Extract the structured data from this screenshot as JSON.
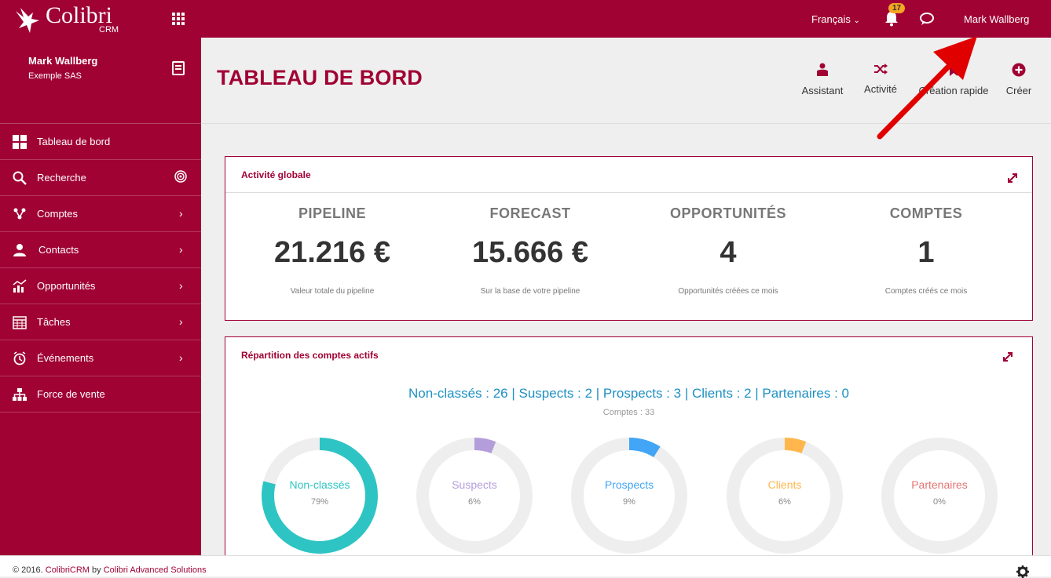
{
  "topbar": {
    "logo_name": "Colibri",
    "logo_sub": "CRM",
    "language": "Français",
    "notification_count": "17",
    "user_name": "Mark Wallberg"
  },
  "sidebar": {
    "profile": {
      "name": "Mark Wallberg",
      "company": "Exemple SAS"
    },
    "items": [
      {
        "label": "Tableau de bord",
        "icon": "dashboard-icon"
      },
      {
        "label": "Recherche",
        "icon": "search-icon"
      },
      {
        "label": "Comptes",
        "icon": "accounts-icon"
      },
      {
        "label": "Contacts",
        "icon": "contacts-icon"
      },
      {
        "label": "Opportunités",
        "icon": "opportunities-icon"
      },
      {
        "label": "Tâches",
        "icon": "tasks-icon"
      },
      {
        "label": "Événements",
        "icon": "events-icon"
      },
      {
        "label": "Force de vente",
        "icon": "sales-force-icon"
      }
    ]
  },
  "header": {
    "title": "TABLEAU DE BORD",
    "actions": [
      {
        "label": "Assistant",
        "icon": "assistant-icon"
      },
      {
        "label": "Activité",
        "icon": "shuffle-icon"
      },
      {
        "label": "Création rapide",
        "icon": "quick-create-icon"
      },
      {
        "label": "Créer",
        "icon": "plus-circle-icon"
      }
    ]
  },
  "activity_panel": {
    "title": "Activité globale",
    "kpis": [
      {
        "label": "PIPELINE",
        "value": "21.216 €",
        "desc": "Valeur totale du pipeline"
      },
      {
        "label": "FORECAST",
        "value": "15.666 €",
        "desc": "Sur la base de votre pipeline"
      },
      {
        "label": "OPPORTUNITÉS",
        "value": "4",
        "desc": "Opportunités créées ce mois"
      },
      {
        "label": "COMPTES",
        "value": "1",
        "desc": "Comptes créés ce mois"
      }
    ]
  },
  "accounts_panel": {
    "title": "Répartition des comptes actifs",
    "summary": "Non-classés : 26 | Suspects : 2 | Prospects : 3 | Clients : 2 | Partenaires : 0",
    "subtitle": "Comptes : 33",
    "donuts": [
      {
        "label": "Non-classés",
        "pct_text": "79%",
        "fraction": 0.79,
        "color": "#2ec4c4"
      },
      {
        "label": "Suspects",
        "pct_text": "6%",
        "fraction": 0.06,
        "color": "#b39ddb"
      },
      {
        "label": "Prospects",
        "pct_text": "9%",
        "fraction": 0.09,
        "color": "#42a5f5"
      },
      {
        "label": "Clients",
        "pct_text": "6%",
        "fraction": 0.06,
        "color": "#ffb74d"
      },
      {
        "label": "Partenaires",
        "pct_text": "0%",
        "fraction": 0,
        "color": "#e57373"
      }
    ]
  },
  "footer": {
    "copyright_prefix": "© 2016. ",
    "brand": "ColibriCRM",
    "by": " by ",
    "company": "Colibri Advanced Solutions"
  },
  "colors": {
    "brand": "#a00234",
    "annotation_arrow": "#e00000"
  }
}
